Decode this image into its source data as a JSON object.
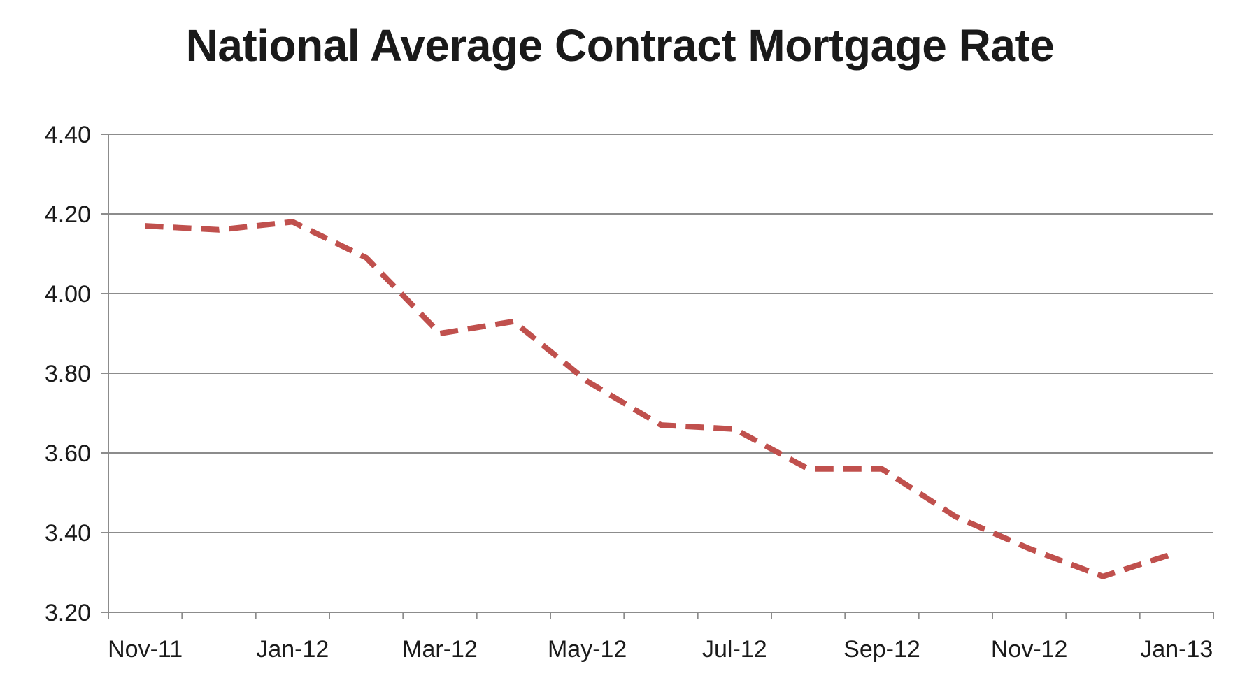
{
  "chart_data": {
    "type": "line",
    "title": "National Average Contract Mortgage Rate",
    "xlabel": "",
    "ylabel": "",
    "ylim": [
      3.2,
      4.4
    ],
    "yticks": [
      "3.20",
      "3.40",
      "3.60",
      "3.80",
      "4.00",
      "4.20",
      "4.40"
    ],
    "x_tick_labels": [
      "Nov-11",
      "Jan-12",
      "Mar-12",
      "May-12",
      "Jul-12",
      "Sep-12",
      "Nov-12",
      "Jan-13"
    ],
    "x": [
      "Nov-11",
      "Dec-11",
      "Jan-12",
      "Feb-12",
      "Mar-12",
      "Apr-12",
      "May-12",
      "Jun-12",
      "Jul-12",
      "Aug-12",
      "Sep-12",
      "Oct-12",
      "Nov-12",
      "Dec-12",
      "Jan-13"
    ],
    "series": [
      {
        "values": [
          4.17,
          4.16,
          4.18,
          4.09,
          3.9,
          3.93,
          3.78,
          3.67,
          3.66,
          3.56,
          3.56,
          3.44,
          3.36,
          3.29,
          3.35
        ],
        "color": "#c0504d",
        "style": "dashed"
      }
    ],
    "grid": "horizontal",
    "legend": "none"
  },
  "colors": {
    "line": "#c0504d",
    "grid": "#8c8c8c",
    "text": "#1a1a1a"
  }
}
